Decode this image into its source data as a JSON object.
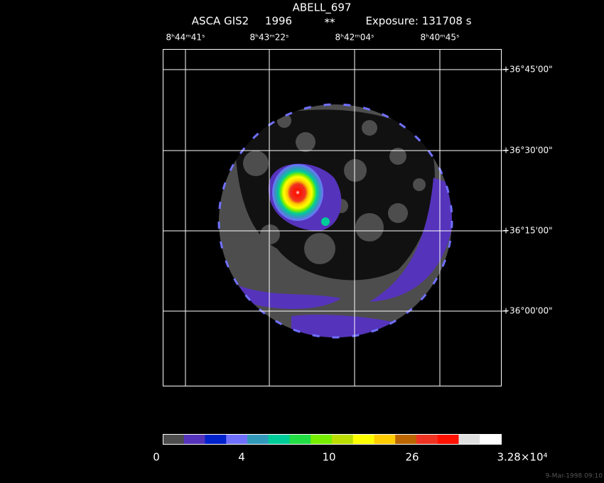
{
  "header": {
    "title": "ABELL_697",
    "instrument": "ASCA GIS2",
    "year": "1996",
    "marker": "**",
    "exposure": "Exposure: 131708 s"
  },
  "ra_labels": [
    "8ʰ44ᵐ41ˢ",
    "8ʰ43ᵐ22ˢ",
    "8ʰ42ᵐ04ˢ",
    "8ʰ40ᵐ45ˢ"
  ],
  "dec_labels": [
    "+36°45'00\"",
    "+36°30'00\"",
    "+36°15'00\"",
    "+36°00'00\""
  ],
  "colorbar": {
    "colors": [
      "#4d4d4d",
      "#5533bb",
      "#0022cc",
      "#7070ff",
      "#3399bb",
      "#00cc99",
      "#22dd44",
      "#77ee00",
      "#bbdd00",
      "#ffff00",
      "#ffcc00",
      "#bb6600",
      "#ee3322",
      "#ff1100",
      "#e0e0e0",
      "#ffffff"
    ],
    "labels": [
      "0",
      "4",
      "10",
      "26",
      "3.28×10⁴"
    ]
  },
  "timestamp": "9-Mar-1998 09:10"
}
